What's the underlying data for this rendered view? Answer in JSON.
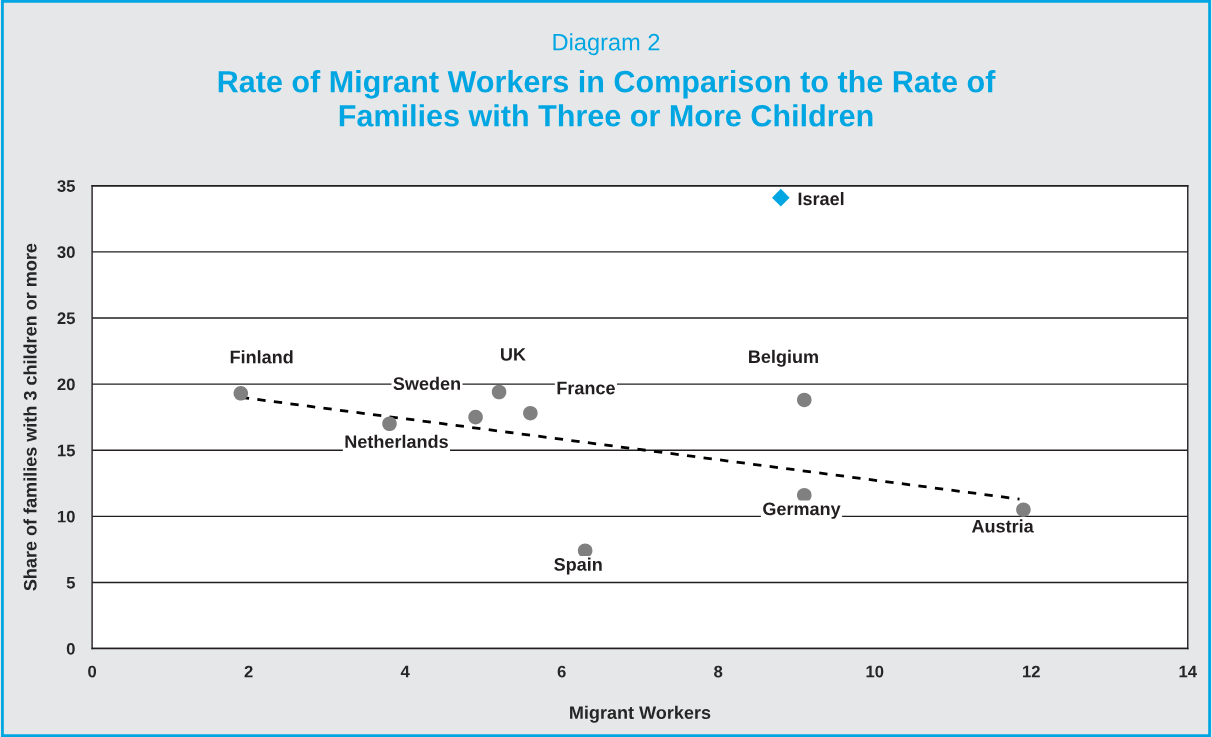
{
  "chart_data": {
    "type": "scatter",
    "subtitle": "Diagram 2",
    "title": "Rate of Migrant Workers in Comparison to the Rate of\nFamilies with Three or More Children",
    "xlabel": "Migrant Workers",
    "ylabel": "Share of families with 3 children or more",
    "series": [
      {
        "marker": "circle",
        "color": "#808080",
        "x": [
          1.9,
          3.8,
          4.9,
          5.2,
          5.6,
          6.3,
          9.1,
          9.1,
          11.9
        ],
        "values": [
          19.3,
          17.0,
          17.5,
          19.4,
          17.8,
          7.4,
          18.8,
          11.6,
          10.5
        ]
      },
      {
        "marker": "diamond",
        "color": "#00a6e2",
        "x": [
          8.8
        ],
        "values": [
          34.1
        ]
      },
      {
        "type": "line",
        "marker": "none",
        "line_style": "dashed",
        "color": "#000000",
        "x": [
          1.9,
          11.85
        ],
        "values": [
          19.0,
          11.3
        ]
      }
    ],
    "annotations": [
      {
        "text": "Finland",
        "x": 1.9,
        "y": 19.3
      },
      {
        "text": "Netherlands",
        "x": 3.8,
        "y": 17.0
      },
      {
        "text": "Sweden",
        "x": 4.9,
        "y": 17.5
      },
      {
        "text": "UK",
        "x": 5.2,
        "y": 19.4
      },
      {
        "text": "France",
        "x": 5.6,
        "y": 17.8
      },
      {
        "text": "Spain",
        "x": 6.3,
        "y": 7.4
      },
      {
        "text": "Belgium",
        "x": 9.1,
        "y": 18.8
      },
      {
        "text": "Germany",
        "x": 9.1,
        "y": 11.6
      },
      {
        "text": "Austria",
        "x": 11.9,
        "y": 10.5
      },
      {
        "text": "Israel",
        "x": 8.8,
        "y": 34.1
      }
    ],
    "xlim": [
      0,
      14
    ],
    "xticks": [
      0,
      2,
      4,
      6,
      8,
      10,
      12,
      14
    ],
    "ylim": [
      0,
      35
    ],
    "yticks": [
      0,
      5,
      10,
      15,
      20,
      25,
      30,
      35
    ],
    "grid": "y",
    "legend": false
  }
}
